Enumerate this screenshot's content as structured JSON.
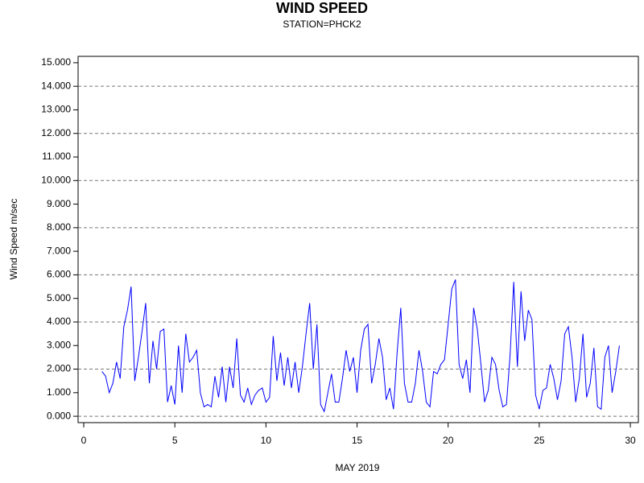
{
  "chart_data": {
    "type": "line",
    "title": "WIND SPEED",
    "subtitle": "STATION=PHCK2",
    "x_label": "MAY 2019",
    "y_label": "Wind Speed m/sec",
    "xlim": [
      -0.31,
      30.44
    ],
    "xticks": [
      0,
      5,
      10,
      15,
      20,
      25,
      30
    ],
    "ylim": [
      -0.27,
      15.27
    ],
    "yticks": [
      {
        "value": 0,
        "label": "0.000"
      },
      {
        "value": 1,
        "label": "1.000"
      },
      {
        "value": 2,
        "label": "2.000"
      },
      {
        "value": 3,
        "label": "3.000"
      },
      {
        "value": 4,
        "label": "4.000"
      },
      {
        "value": 5,
        "label": "5.000"
      },
      {
        "value": 6,
        "label": "6.000"
      },
      {
        "value": 7,
        "label": "7.000"
      },
      {
        "value": 8,
        "label": "8.000"
      },
      {
        "value": 9,
        "label": "9.000"
      },
      {
        "value": 10,
        "label": "10.000"
      },
      {
        "value": 11,
        "label": "11.000"
      },
      {
        "value": 12,
        "label": "12.000"
      },
      {
        "value": 13,
        "label": "13.000"
      },
      {
        "value": 14,
        "label": "14.000"
      },
      {
        "value": 15,
        "label": "15.000"
      }
    ],
    "grid": true,
    "x": [
      1.0,
      1.2,
      1.4,
      1.6,
      1.8,
      2.0,
      2.2,
      2.4,
      2.6,
      2.8,
      3.0,
      3.2,
      3.4,
      3.6,
      3.8,
      4.0,
      4.2,
      4.4,
      4.6,
      4.8,
      5.0,
      5.2,
      5.4,
      5.6,
      5.8,
      6.0,
      6.2,
      6.4,
      6.6,
      6.8,
      7.0,
      7.2,
      7.4,
      7.6,
      7.8,
      8.0,
      8.2,
      8.4,
      8.6,
      8.8,
      9.0,
      9.2,
      9.4,
      9.6,
      9.8,
      10.0,
      10.2,
      10.4,
      10.6,
      10.8,
      11.0,
      11.2,
      11.4,
      11.6,
      11.8,
      12.0,
      12.2,
      12.4,
      12.6,
      12.8,
      13.0,
      13.2,
      13.4,
      13.6,
      13.8,
      14.0,
      14.2,
      14.4,
      14.6,
      14.8,
      15.0,
      15.2,
      15.4,
      15.6,
      15.8,
      16.0,
      16.2,
      16.4,
      16.6,
      16.8,
      17.0,
      17.2,
      17.4,
      17.6,
      17.8,
      18.0,
      18.2,
      18.4,
      18.6,
      18.8,
      19.0,
      19.2,
      19.4,
      19.6,
      19.8,
      20.0,
      20.2,
      20.4,
      20.6,
      20.8,
      21.0,
      21.2,
      21.4,
      21.6,
      21.8,
      22.0,
      22.2,
      22.4,
      22.6,
      22.8,
      23.0,
      23.2,
      23.4,
      23.6,
      23.8,
      24.0,
      24.2,
      24.4,
      24.6,
      24.8,
      25.0,
      25.2,
      25.4,
      25.6,
      25.8,
      26.0,
      26.2,
      26.4,
      26.6,
      26.8,
      27.0,
      27.2,
      27.4,
      27.6,
      27.8,
      28.0,
      28.2,
      28.4,
      28.6,
      28.8,
      29.0,
      29.2,
      29.4
    ],
    "series": [
      {
        "color": "#0000ff",
        "values": [
          1.9,
          1.7,
          1.0,
          1.4,
          2.3,
          1.6,
          3.8,
          4.5,
          5.5,
          1.5,
          2.5,
          3.6,
          4.8,
          1.4,
          3.2,
          2.0,
          3.6,
          3.7,
          0.6,
          1.3,
          0.5,
          3.0,
          1.0,
          3.5,
          2.3,
          2.5,
          2.8,
          1.0,
          0.4,
          0.5,
          0.4,
          1.7,
          0.8,
          2.1,
          0.6,
          2.1,
          1.2,
          3.3,
          0.9,
          0.6,
          1.2,
          0.5,
          0.9,
          1.1,
          1.2,
          0.6,
          0.8,
          3.4,
          1.5,
          2.7,
          1.3,
          2.5,
          1.2,
          2.3,
          1.0,
          2.1,
          3.5,
          4.8,
          2.0,
          3.9,
          0.5,
          0.2,
          1.0,
          1.8,
          0.6,
          0.6,
          1.6,
          2.8,
          1.9,
          2.5,
          1.0,
          2.8,
          3.7,
          3.9,
          1.4,
          2.2,
          3.3,
          2.5,
          0.7,
          1.2,
          0.3,
          2.7,
          4.6,
          1.4,
          0.6,
          0.6,
          1.4,
          2.8,
          1.9,
          0.6,
          0.4,
          1.9,
          1.8,
          2.2,
          2.4,
          3.9,
          5.4,
          5.8,
          2.2,
          1.6,
          2.4,
          1.0,
          4.6,
          3.7,
          2.2,
          0.6,
          1.1,
          2.5,
          2.2,
          1.1,
          0.4,
          0.5,
          2.6,
          5.7,
          2.1,
          5.3,
          3.2,
          4.5,
          4.1,
          0.9,
          0.3,
          1.1,
          1.2,
          2.2,
          1.6,
          0.7,
          1.5,
          3.5,
          3.8,
          2.5,
          0.6,
          1.6,
          3.5,
          0.8,
          1.4,
          2.9,
          0.4,
          0.3,
          2.5,
          3.0,
          1.0,
          1.9,
          3.0
        ]
      }
    ]
  }
}
